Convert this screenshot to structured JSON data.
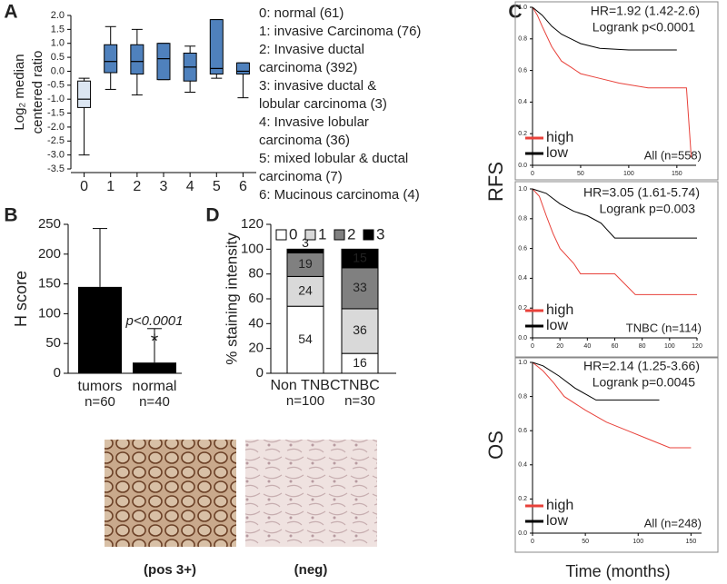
{
  "chart_data": [
    {
      "panel": "A",
      "type": "box",
      "ylabel_lines": [
        "Log₂ median",
        "centered ratio"
      ],
      "categories": [
        "0",
        "1",
        "2",
        "3",
        "4",
        "5",
        "6"
      ],
      "min": [
        -3.0,
        -0.65,
        -0.85,
        -0.3,
        -0.75,
        -0.25,
        -0.95
      ],
      "q1": [
        -1.3,
        -0.05,
        -0.1,
        -0.3,
        -0.35,
        -0.1,
        -0.1
      ],
      "median": [
        -1.0,
        0.35,
        0.35,
        0.45,
        0.15,
        0.1,
        0.0
      ],
      "q3": [
        -0.35,
        0.95,
        0.95,
        1.0,
        0.65,
        1.85,
        0.3
      ],
      "max": [
        -0.25,
        1.6,
        1.5,
        1.0,
        0.9,
        1.85,
        0.3
      ],
      "colors": [
        "#dce6f2",
        "#4f81bd",
        "#4f81bd",
        "#4f81bd",
        "#4f81bd",
        "#4f81bd",
        "#4f81bd"
      ],
      "ylim": [
        -3.5,
        2.0
      ],
      "yticks": [
        {
          "value": -3.5,
          "label": "-3.5"
        },
        {
          "value": -3,
          "label": "-3.0"
        },
        -2.5,
        {
          "value": -2,
          "label": "-2.0"
        },
        -1.5,
        {
          "value": -1,
          "label": "-1.0"
        },
        -0.5,
        {
          "value": 0,
          "label": "0.0"
        },
        0.5,
        {
          "value": 1,
          "label": "1.0"
        },
        1.5,
        {
          "value": 2,
          "label": "2.0"
        }
      ],
      "legend_lines": [
        "0: normal (61)",
        "1: invasive Carcinoma (76)",
        "2: Invasive ductal",
        "carcinoma (392)",
        "3: invasive ductal &",
        "lobular carcinoma (3)",
        "4: Invasive lobular",
        "carcinoma (36)",
        "5: mixed lobular & ductal",
        "carcinoma (7)",
        "6: Mucinous carcinoma (4)"
      ]
    },
    {
      "panel": "B",
      "type": "bar",
      "ylabel": "H score",
      "categories": [
        "tumors",
        "normal"
      ],
      "sample_sizes": [
        "n=60",
        "n=40"
      ],
      "values": [
        145,
        18
      ],
      "errors": [
        98,
        57
      ],
      "color": "#000000",
      "ylim": [
        0,
        250
      ],
      "yticks": [
        0,
        50,
        100,
        150,
        200,
        250
      ],
      "annotations": [
        "p<0.0001",
        "*"
      ],
      "image_captions": [
        "(pos 3+)",
        "(neg)"
      ]
    },
    {
      "panel": "C",
      "type": "line",
      "side_label": "RFS",
      "hr": "HR=1.92 (1.42-2.6)",
      "logrank": "Logrank p<0.0001",
      "subset": "All (n=558)",
      "xlim": [
        0,
        170
      ],
      "xticks": [
        0,
        50,
        100,
        150
      ],
      "ylim": [
        0,
        1
      ],
      "yticks": [
        {
          "value": 0,
          "label": "0.0"
        },
        0.2,
        0.4,
        0.6,
        0.8,
        {
          "value": 1,
          "label": "1.0"
        }
      ],
      "series": [
        {
          "name": "high",
          "color": "#e8413a",
          "x": [
            0,
            5,
            10,
            20,
            30,
            40,
            50,
            70,
            90,
            120,
            160,
            165
          ],
          "values": [
            1.0,
            0.95,
            0.88,
            0.75,
            0.66,
            0.62,
            0.58,
            0.55,
            0.52,
            0.49,
            0.49,
            0.05
          ]
        },
        {
          "name": "low",
          "color": "#000000",
          "x": [
            0,
            10,
            20,
            30,
            40,
            50,
            70,
            100,
            150
          ],
          "values": [
            1.0,
            0.95,
            0.88,
            0.83,
            0.8,
            0.77,
            0.74,
            0.73,
            0.73
          ]
        }
      ]
    },
    {
      "type": "line",
      "hr": "HR=3.05 (1.61-5.74)",
      "logrank": "Logrank p=0.003",
      "subset": "TNBC (n=114)",
      "xlim": [
        0,
        120
      ],
      "xticks": [
        0,
        20,
        40,
        60,
        80,
        100,
        120
      ],
      "ylim": [
        0,
        1
      ],
      "yticks": [
        {
          "value": 0,
          "label": "0.0"
        },
        0.2,
        0.4,
        0.6,
        0.8,
        {
          "value": 1,
          "label": "1.0"
        }
      ],
      "series": [
        {
          "name": "high",
          "color": "#e8413a",
          "x": [
            0,
            5,
            10,
            15,
            20,
            30,
            35,
            60,
            75,
            120
          ],
          "values": [
            1.0,
            0.95,
            0.82,
            0.7,
            0.6,
            0.5,
            0.43,
            0.43,
            0.29,
            0.29
          ]
        },
        {
          "name": "low",
          "color": "#000000",
          "x": [
            0,
            10,
            20,
            30,
            40,
            50,
            60,
            70,
            120
          ],
          "values": [
            1.0,
            0.97,
            0.9,
            0.85,
            0.82,
            0.77,
            0.67,
            0.67,
            0.67
          ]
        }
      ]
    },
    {
      "type": "line",
      "side_label": "OS",
      "xlabel": "Time (months)",
      "hr": "HR=2.14 (1.25-3.66)",
      "logrank": "Logrank p=0.0045",
      "subset": "All (n=248)",
      "xlim": [
        0,
        160
      ],
      "xticks": [
        0,
        50,
        100,
        150
      ],
      "ylim": [
        0,
        1
      ],
      "yticks": [
        {
          "value": 0,
          "label": "0.0"
        },
        0.2,
        0.4,
        0.6,
        0.8,
        {
          "value": 1,
          "label": "1.0"
        }
      ],
      "series": [
        {
          "name": "high",
          "color": "#e8413a",
          "x": [
            0,
            10,
            20,
            30,
            50,
            70,
            90,
            110,
            130,
            150
          ],
          "values": [
            1.0,
            0.95,
            0.88,
            0.8,
            0.72,
            0.65,
            0.6,
            0.55,
            0.5,
            0.5
          ]
        },
        {
          "name": "low",
          "color": "#000000",
          "x": [
            0,
            10,
            25,
            40,
            60,
            80,
            100,
            120
          ],
          "values": [
            1.0,
            0.98,
            0.92,
            0.85,
            0.78,
            0.78,
            0.78,
            0.78
          ]
        }
      ]
    },
    {
      "panel": "D",
      "type": "stacked_bar",
      "ylabel": "% staining intensity",
      "categories": [
        "Non TNBC",
        "TNBC"
      ],
      "sample_sizes": [
        "n=100",
        "n=30"
      ],
      "ylim": [
        0,
        120
      ],
      "yticks": [
        0,
        20,
        40,
        60,
        80,
        100,
        120
      ],
      "series": [
        {
          "name": "0",
          "color": "#ffffff",
          "values": [
            54,
            16
          ]
        },
        {
          "name": "1",
          "color": "#d9d9d9",
          "values": [
            24,
            36
          ]
        },
        {
          "name": "2",
          "color": "#808080",
          "values": [
            19,
            33
          ]
        },
        {
          "name": "3",
          "color": "#000000",
          "values": [
            3,
            15
          ]
        }
      ]
    }
  ]
}
